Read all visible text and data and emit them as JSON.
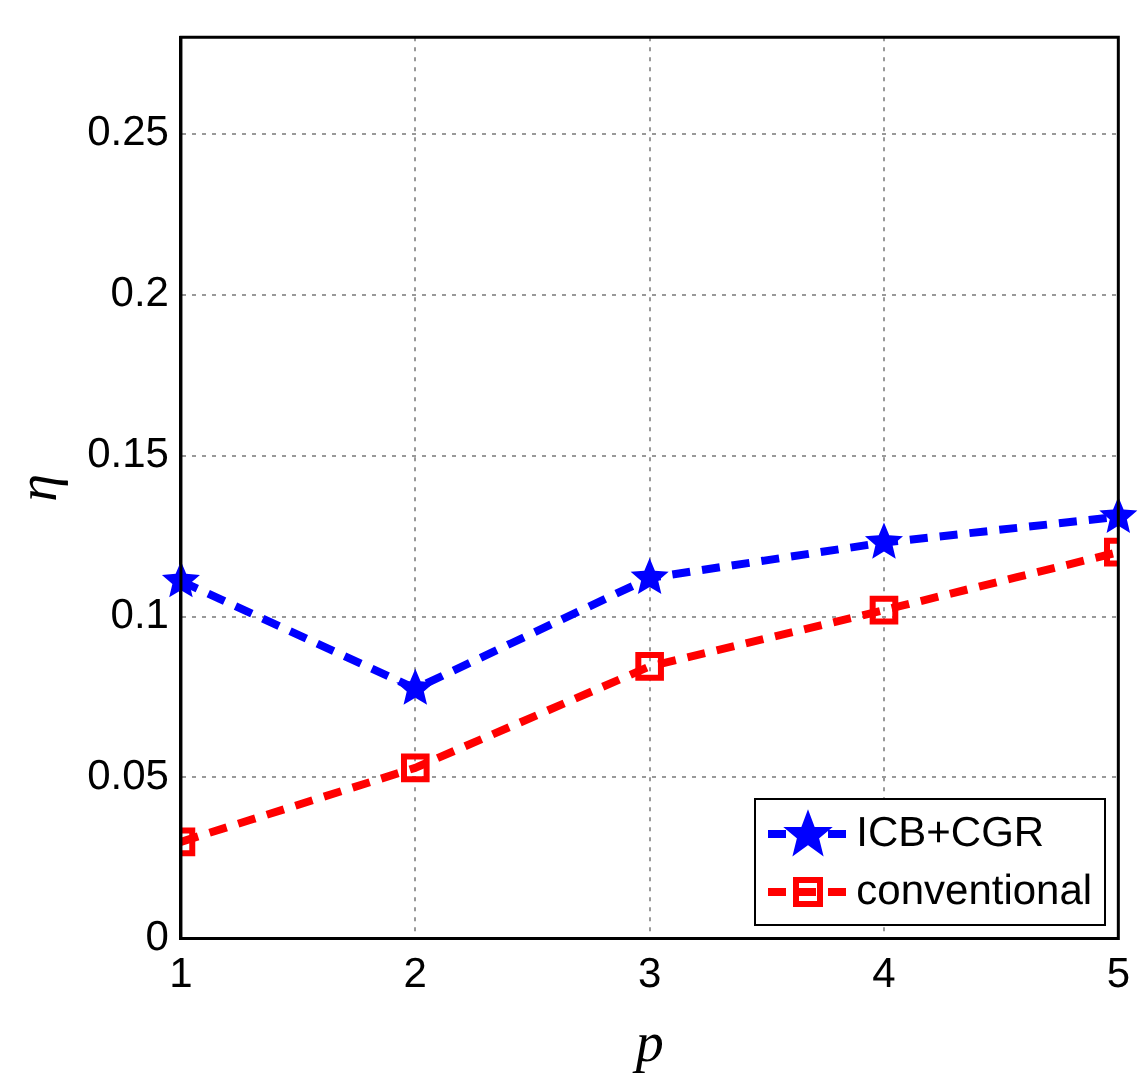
{
  "chart_data": {
    "type": "line",
    "xlabel": "p",
    "ylabel": "η",
    "x": [
      1,
      2,
      3,
      4,
      5
    ],
    "xlim": [
      1,
      5
    ],
    "xticks": [
      1,
      2,
      3,
      4,
      5
    ],
    "ylim": [
      0,
      0.28
    ],
    "yticks": [
      0,
      0.05,
      0.1,
      0.15,
      0.2,
      0.25
    ],
    "grid": true,
    "legend": "bottom right",
    "line_style": "dashed",
    "series": [
      {
        "name": "ICB+CGR",
        "color": "#0000ff",
        "marker": "star",
        "values": [
          0.111,
          0.0776,
          0.112,
          0.123,
          0.131
        ]
      },
      {
        "name": "conventional",
        "color": "#ff0000",
        "marker": "square",
        "values": [
          0.03,
          0.053,
          0.0845,
          0.102,
          0.12
        ]
      }
    ]
  }
}
